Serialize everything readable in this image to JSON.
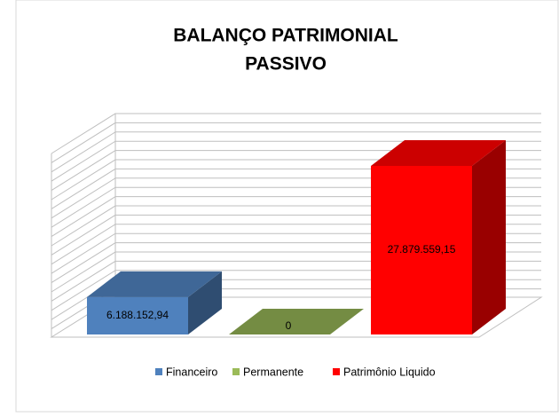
{
  "chart_data": {
    "type": "bar3d",
    "title": [
      "BALANÇO PATRIMONIAL",
      "PASSIVO"
    ],
    "categories": [
      "Financeiro",
      "Permanente",
      "Patrimônio Liquido"
    ],
    "values": [
      6188152.94,
      0,
      27879559.15
    ],
    "value_labels": [
      "6.188.152,94",
      "0",
      "27.879.559,15"
    ],
    "colors": [
      "#4f81bd",
      "#9bbb59",
      "#ff0000"
    ],
    "grid": true,
    "legend": "bottom"
  }
}
